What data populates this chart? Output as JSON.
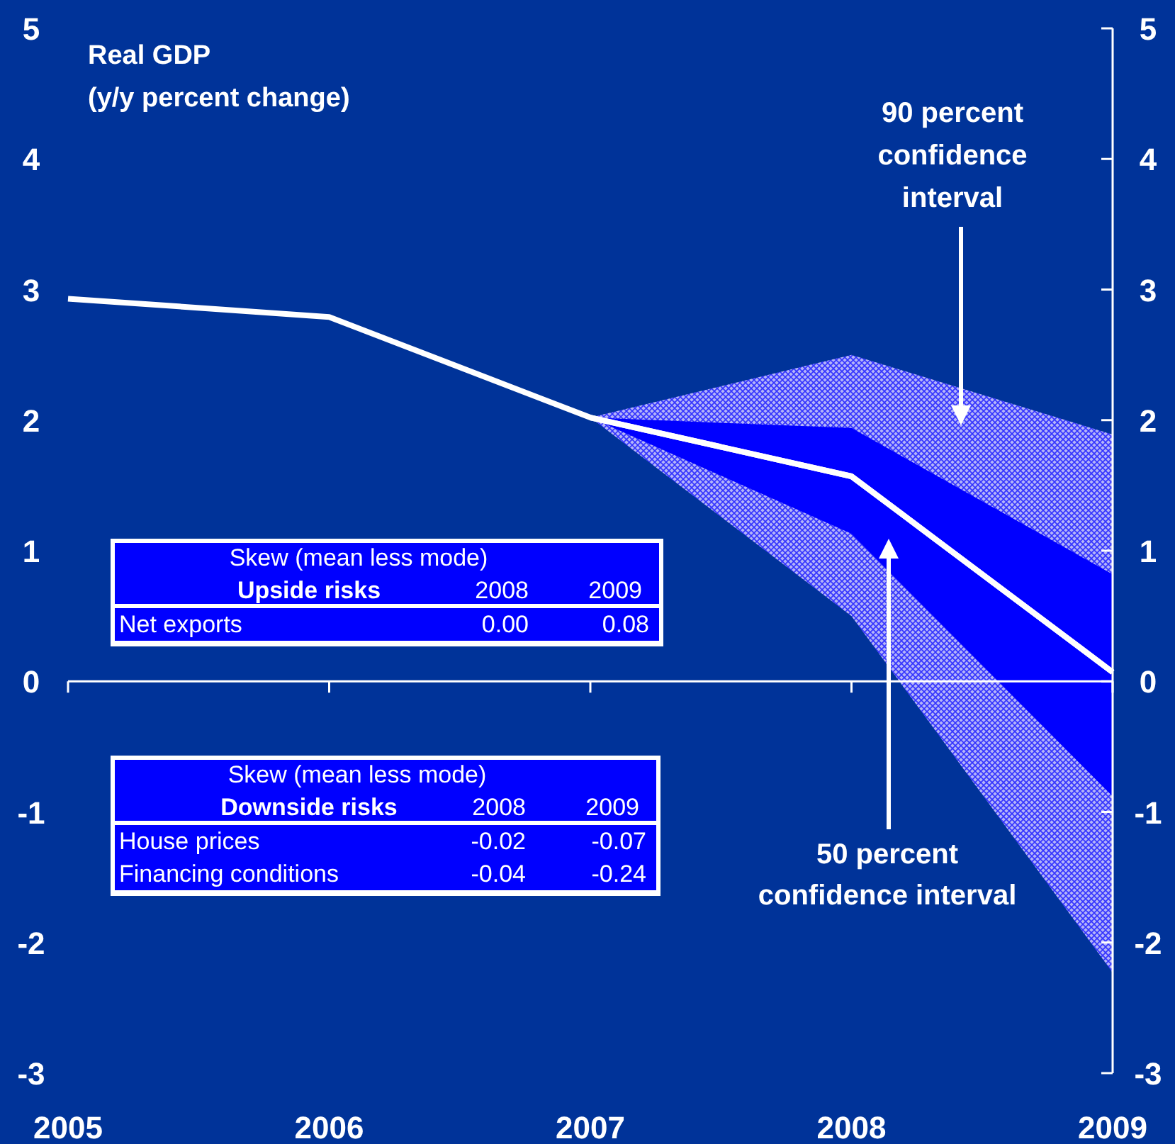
{
  "chart_data": {
    "type": "line",
    "title": "Real GDP",
    "subtitle": "(y/y percent change)",
    "x": [
      2005,
      2006,
      2007,
      2008,
      2009
    ],
    "xlim": [
      2005,
      2009
    ],
    "xticks": [
      2005,
      2006,
      2007,
      2008,
      2009
    ],
    "ylim": [
      -3,
      5
    ],
    "yticks": [
      -3,
      -2,
      -1,
      0,
      1,
      2,
      3,
      4,
      5
    ],
    "y2lim": [
      -3,
      5
    ],
    "y2ticks": [
      -3,
      -2,
      -1,
      0,
      1,
      2,
      3,
      4,
      5
    ],
    "grid": false,
    "ref_lines": [
      {
        "axis": "y",
        "value": 0,
        "color": "#ffffff"
      }
    ],
    "marker": "none",
    "line_style": "solid",
    "series": [
      {
        "color": "#ffffff",
        "values": [
          2.93,
          2.79,
          2.02,
          1.57,
          0.07
        ],
        "lower": [
          null,
          null,
          2.02,
          0.5,
          -2.23
        ],
        "upper": [
          null,
          null,
          2.02,
          2.5,
          1.89
        ]
      },
      {
        "color": "#ffffff",
        "x": [
          2007,
          2008,
          2009
        ],
        "values": [
          2.02,
          1.57,
          0.07
        ],
        "lower": [
          2.02,
          1.13,
          -0.88
        ],
        "upper": [
          2.02,
          1.94,
          0.82
        ]
      }
    ],
    "annotations": [
      "90 percent\nconfidence\ninterval",
      "50 percent\nconfidence interval",
      "Skew (mean less mode)",
      "Upside risks",
      "2008",
      "2009",
      "Net exports",
      "0.00",
      "0.08",
      "Skew (mean less mode)",
      "Downside risks",
      "2008",
      "2009",
      "House prices",
      "-0.02",
      "-0.07",
      "Financing conditions",
      "-0.04",
      "-0.24"
    ]
  }
}
